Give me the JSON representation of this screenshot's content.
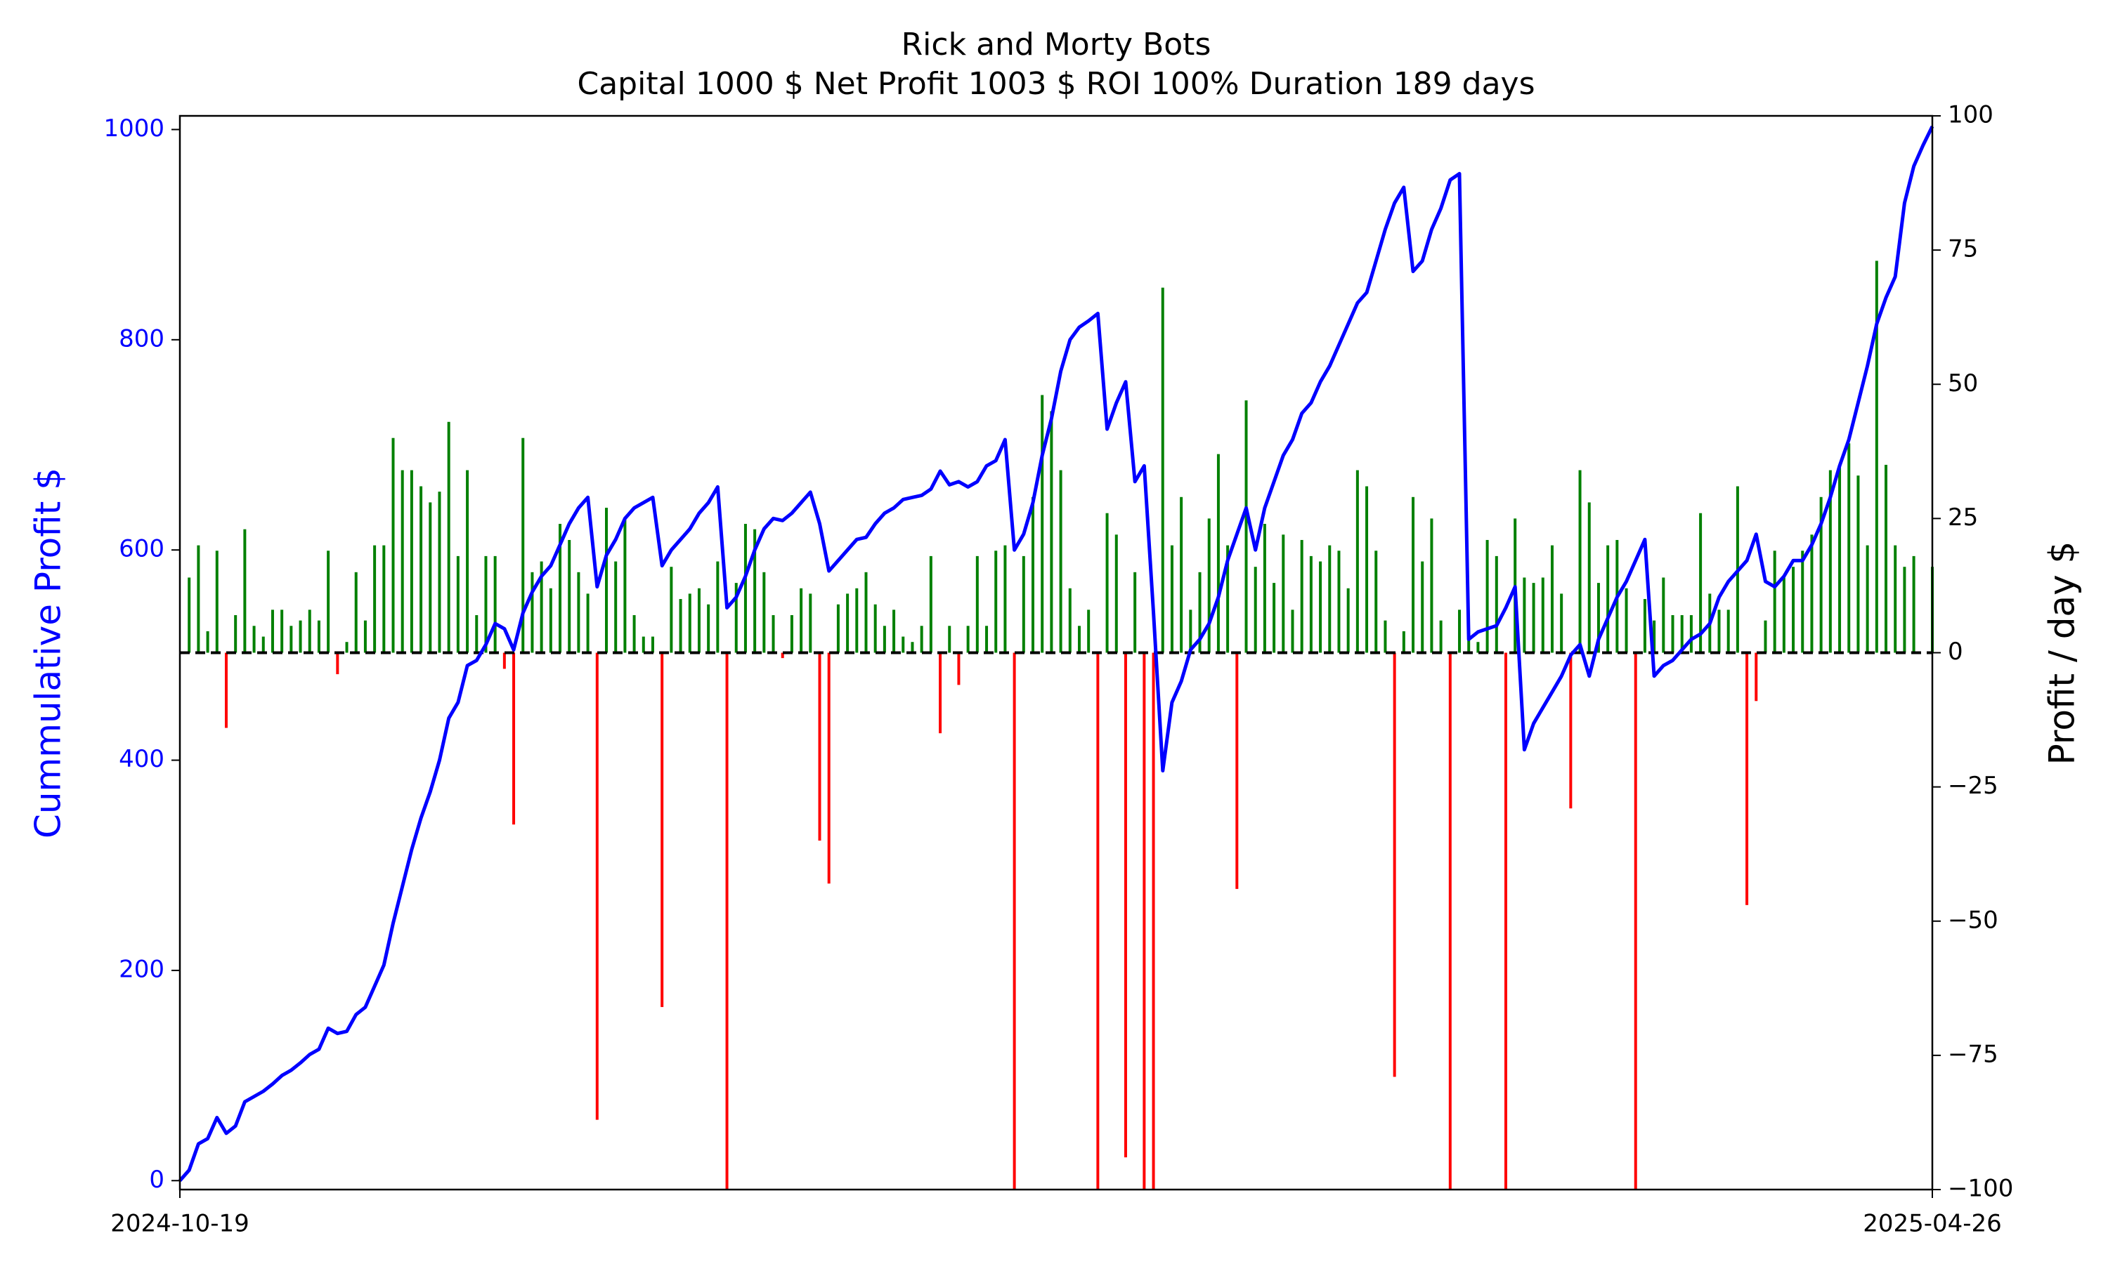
{
  "chart_data": {
    "type": "combo",
    "title": "Rick and Morty Bots",
    "subtitle": "Capital 1000 $ Net Profit 1003 $ ROI 100% Duration 189 days",
    "ylabel": "Cummulative Profit $",
    "y2label": "Profit / day $",
    "xlim": [
      "2024-10-19",
      "2025-04-26"
    ],
    "xticks": [
      "2024-10-19",
      "2025-04-26"
    ],
    "ylim": [
      -8.5,
      1013
    ],
    "yticks": [
      0,
      200,
      400,
      600,
      800,
      1000
    ],
    "y2lim": [
      -100,
      100
    ],
    "y2ticks": [
      {
        "value": -100,
        "label": "−100"
      },
      {
        "value": -75,
        "label": "−75"
      },
      {
        "value": -50,
        "label": "−50"
      },
      {
        "value": -25,
        "label": "−25"
      },
      0,
      25,
      50,
      75,
      100
    ],
    "zero_line": {
      "value": 0,
      "color": "#000000",
      "dashed": true
    },
    "line": {
      "color": "#0000ff",
      "values": [
        0,
        10,
        35,
        40,
        60,
        45,
        52,
        75,
        80,
        85,
        92,
        100,
        105,
        112,
        120,
        125,
        145,
        140,
        142,
        158,
        165,
        185,
        205,
        245,
        280,
        315,
        345,
        370,
        400,
        440,
        455,
        490,
        495,
        510,
        530,
        525,
        505,
        540,
        560,
        575,
        585,
        605,
        625,
        640,
        650,
        565,
        595,
        610,
        630,
        640,
        645,
        650,
        585,
        600,
        610,
        620,
        635,
        645,
        660,
        545,
        555,
        575,
        600,
        620,
        630,
        628,
        635,
        645,
        655,
        625,
        580,
        590,
        600,
        610,
        612,
        625,
        635,
        640,
        648,
        650,
        652,
        658,
        675,
        662,
        665,
        660,
        665,
        680,
        685,
        705,
        600,
        615,
        645,
        690,
        725,
        770,
        800,
        812,
        818,
        825,
        715,
        740,
        760,
        665,
        680,
        540,
        390,
        455,
        475,
        505,
        515,
        530,
        555,
        590,
        615,
        640,
        600,
        640,
        665,
        690,
        705,
        730,
        740,
        760,
        775,
        795,
        815,
        835,
        845,
        875,
        905,
        930,
        945,
        865,
        875,
        905,
        925,
        952,
        958,
        515,
        522,
        525,
        528,
        545,
        565,
        410,
        435,
        450,
        465,
        480,
        500,
        510,
        480,
        515,
        535,
        555,
        570,
        590,
        610,
        480,
        490,
        495,
        505,
        515,
        520,
        530,
        555,
        570,
        580,
        590,
        615,
        570,
        565,
        575,
        590,
        590,
        605,
        625,
        650,
        680,
        705,
        740,
        775,
        815,
        840,
        860,
        930,
        965,
        985,
        1003
      ]
    },
    "bars": {
      "axis": "y2",
      "positive_color": "#008000",
      "negative_color": "#ff0000",
      "values": [
        0,
        14,
        20,
        4,
        19,
        -14,
        7,
        23,
        5,
        3,
        8,
        8,
        5,
        6,
        8,
        6,
        19,
        -4,
        2,
        15,
        6,
        20,
        20,
        40,
        34,
        34,
        31,
        28,
        30,
        43,
        18,
        34,
        7,
        18,
        18,
        -3,
        -32,
        40,
        15,
        17,
        12,
        24,
        21,
        15,
        11,
        -87,
        27,
        17,
        25,
        7,
        3,
        3,
        -66,
        16,
        10,
        11,
        12,
        9,
        17,
        -100,
        13,
        24,
        23,
        15,
        7,
        -1,
        7,
        12,
        11,
        -35,
        -43,
        9,
        11,
        12,
        15,
        9,
        5,
        8,
        3,
        2,
        5,
        18,
        -15,
        5,
        -6,
        5,
        18,
        5,
        19,
        20,
        -100,
        18,
        29,
        48,
        45,
        34,
        12,
        5,
        8,
        -100,
        26,
        22,
        -94,
        15,
        -100,
        -100,
        68,
        20,
        29,
        8,
        15,
        25,
        37,
        20,
        -44,
        47,
        16,
        24,
        13,
        22,
        8,
        21,
        18,
        17,
        20,
        19,
        12,
        34,
        31,
        19,
        6,
        -79,
        4,
        29,
        17,
        25,
        6,
        -100,
        8,
        3,
        2,
        21,
        18,
        -100,
        25,
        14,
        13,
        14,
        20,
        11,
        -29,
        34,
        28,
        13,
        20,
        21,
        12,
        -100,
        10,
        6,
        14,
        7,
        7,
        7,
        26,
        11,
        8,
        8,
        31,
        -47,
        -9,
        6,
        19,
        14,
        16,
        19,
        22,
        29,
        34,
        35,
        39,
        33,
        20,
        73,
        35,
        20,
        16,
        18,
        0,
        16
      ]
    }
  }
}
